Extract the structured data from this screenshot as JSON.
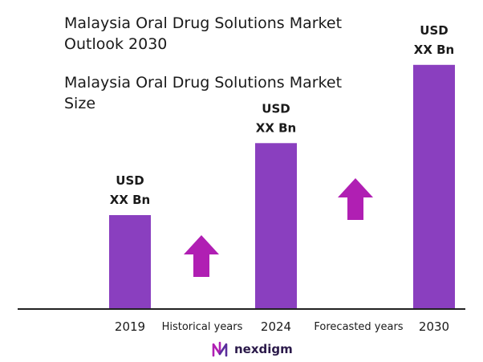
{
  "header": {
    "title": "Malaysia Oral Drug Solutions Market Outlook 2030",
    "subtitle": "Malaysia Oral Drug Solutions Market Size"
  },
  "brand": {
    "name": "nexdigm",
    "icon": "nexdigm-logo-icon"
  },
  "colors": {
    "bar": "#8a3fbf",
    "arrow": "#b01fb3",
    "axis": "#222222"
  },
  "chart_data": {
    "type": "bar",
    "categories": [
      "2019",
      "2024",
      "2030"
    ],
    "values": [
      0.3,
      0.53,
      0.78
    ],
    "value_note": "relative bar heights; chart prints placeholder values",
    "data_labels": [
      [
        "USD",
        "XX Bn"
      ],
      [
        "USD",
        "XX Bn"
      ],
      [
        "USD",
        "XX Bn"
      ]
    ],
    "ylim": [
      0,
      1
    ],
    "grid": false,
    "annotations": [
      {
        "text": "Historical years",
        "between": [
          "2019",
          "2024"
        ],
        "icon": "up-arrow-icon"
      },
      {
        "text": "Forecasted years",
        "between": [
          "2024",
          "2030"
        ],
        "icon": "up-arrow-icon"
      }
    ]
  }
}
